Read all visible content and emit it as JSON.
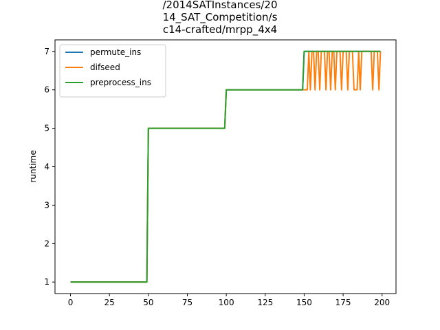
{
  "chart_data": {
    "type": "line",
    "title_lines": [
      "/2014SATInstances/20",
      "14_SAT_Competition/s",
      "c14-crafted/mrpp_4x4"
    ],
    "xlabel": "",
    "ylabel": "runtime",
    "xlim": [
      -9.95,
      208.95
    ],
    "ylim": [
      0.7,
      7.3
    ],
    "xticks": [
      0,
      25,
      50,
      75,
      100,
      125,
      150,
      175,
      200
    ],
    "yticks": [
      1,
      2,
      3,
      4,
      5,
      6,
      7
    ],
    "legend_position": "upper-left",
    "grid": false,
    "series": [
      {
        "name": "permute_ins",
        "color": "#1f77b4",
        "x": [
          0,
          49,
          50,
          99,
          100,
          149,
          150,
          199
        ],
        "y": [
          1,
          1,
          5,
          5,
          6,
          6,
          7,
          7
        ]
      },
      {
        "name": "difseed",
        "color": "#ff7f0e",
        "x": [
          0,
          49,
          50,
          99,
          100,
          149,
          150,
          151,
          152,
          153,
          154,
          155,
          156,
          157,
          158,
          159,
          160,
          161,
          162,
          163,
          164,
          165,
          166,
          167,
          168,
          169,
          170,
          171,
          172,
          173,
          174,
          175,
          176,
          177,
          178,
          179,
          180,
          181,
          182,
          183,
          184,
          185,
          186,
          187,
          188,
          189,
          190,
          191,
          192,
          193,
          194,
          195,
          196,
          197,
          198,
          199
        ],
        "y": [
          1,
          1,
          5,
          5,
          6,
          6,
          6,
          6,
          6,
          7,
          6,
          7,
          7,
          6,
          7,
          7,
          6,
          7,
          7,
          7,
          6,
          7,
          7,
          6,
          7,
          7,
          6,
          7,
          7,
          7,
          6,
          7,
          7,
          7,
          6,
          7,
          7,
          7,
          6,
          6,
          6,
          7,
          6,
          7,
          7,
          7,
          7,
          7,
          7,
          7,
          6,
          7,
          7,
          7,
          6,
          7
        ]
      },
      {
        "name": "preprocess_ins",
        "color": "#2ca02c",
        "x": [
          0,
          49,
          50,
          99,
          100,
          149,
          150,
          199
        ],
        "y": [
          1,
          1,
          5,
          5,
          6,
          6,
          7,
          7
        ]
      }
    ]
  },
  "style": {
    "axes_color": "#000000",
    "legend_border_color": "#cccccc"
  }
}
